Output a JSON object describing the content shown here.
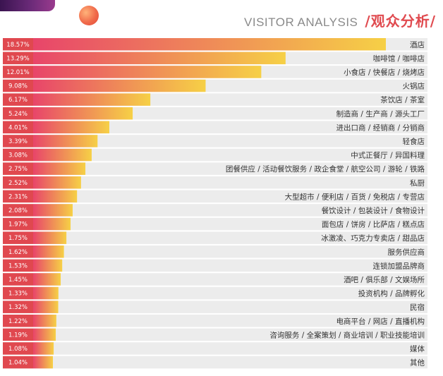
{
  "header": {
    "title_en": "VISITOR ANALYSIS",
    "title_zh": "/观众分析/"
  },
  "colors": {
    "accent_red": "#e0484f",
    "bar_start": "#e8456a",
    "bar_end": "#f6d046",
    "row_bg": "#ececec"
  },
  "chart_data": {
    "type": "bar",
    "orientation": "horizontal",
    "unit": "%",
    "categories": [
      "酒店",
      "咖啡馆 / 咖啡店",
      "小食店 / 快餐店 / 烧烤店",
      "火锅店",
      "茶饮店 / 茶室",
      "制造商 / 生产商 / 源头工厂",
      "进出口商 / 经销商 / 分销商",
      "轻食店",
      "中式正餐厅 / 异国料理",
      "团餐供应 / 活动餐饮服务 / 政企食堂 / 航空公司 / 游轮 / 铁路",
      "私厨",
      "大型超市 / 便利店 / 百货 / 免税店 / 专营店",
      "餐饮设计 / 包装设计 / 食物设计",
      "面包店 / 饼房 / 比萨店 / 糕点店",
      "冰激凌、巧克力专卖店 / 甜品店",
      "服务供应商",
      "连锁加盟品牌商",
      "酒吧 / 俱乐部 / 文娱场所",
      "投资机构 / 品牌孵化",
      "民宿",
      "电商平台 / 网店 / 直播机构",
      "咨询服务 / 全案策划 / 商业培训 / 职业技能培训",
      "媒体",
      "其他"
    ],
    "values": [
      18.57,
      13.29,
      12.01,
      9.08,
      6.17,
      5.24,
      4.01,
      3.39,
      3.08,
      2.75,
      2.52,
      2.31,
      2.08,
      1.97,
      1.75,
      1.62,
      1.53,
      1.45,
      1.33,
      1.32,
      1.22,
      1.19,
      1.08,
      1.04
    ],
    "labels": [
      "18.57%",
      "13.29%",
      "12.01%",
      "9.08%",
      "6.17%",
      "5.24%",
      "4.01%",
      "3.39%",
      "3.08%",
      "2.75%",
      "2.52%",
      "2.31%",
      "2.08%",
      "1.97%",
      "1.75%",
      "1.62%",
      "1.53%",
      "1.45%",
      "1.33%",
      "1.32%",
      "1.22%",
      "1.19%",
      "1.08%",
      "1.04%"
    ],
    "xlim": [
      0,
      18.57
    ],
    "grid": false,
    "legend": "none"
  }
}
